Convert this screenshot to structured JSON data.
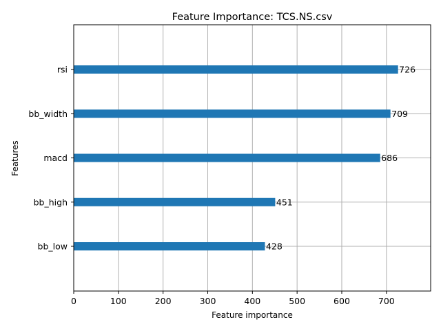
{
  "chart_data": {
    "type": "bar",
    "orientation": "horizontal",
    "title": "Feature Importance: TCS.NS.csv",
    "xlabel": "Feature importance",
    "ylabel": "Features",
    "categories": [
      "bb_low",
      "bb_high",
      "macd",
      "bb_width",
      "rsi"
    ],
    "values": [
      428,
      451,
      686,
      709,
      726
    ],
    "value_labels": [
      "428",
      "451",
      "686",
      "709",
      "726"
    ],
    "xlim": [
      0,
      799
    ],
    "xticks": [
      0,
      100,
      200,
      300,
      400,
      500,
      600,
      700
    ],
    "xtick_labels": [
      "0",
      "100",
      "200",
      "300",
      "400",
      "500",
      "600",
      "700"
    ],
    "grid": true,
    "legend": "none",
    "bar_color": "#1f77b4",
    "grid_color": "#b0b0b0"
  }
}
